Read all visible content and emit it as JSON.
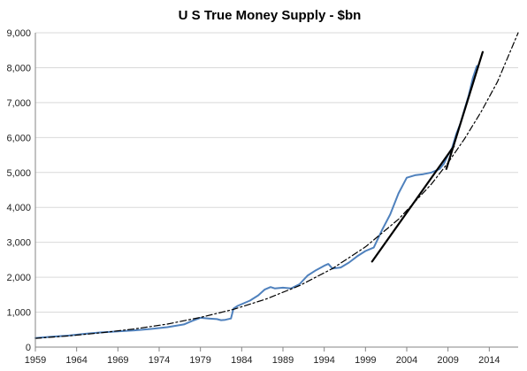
{
  "chart_data": {
    "type": "line",
    "title": "U S True Money Supply - $bn",
    "xlabel": "",
    "ylabel": "",
    "xlim": [
      1959,
      2017.5
    ],
    "ylim": [
      0,
      9000
    ],
    "grid": true,
    "legend": "none",
    "x_ticks": [
      "1959",
      "1964",
      "1969",
      "1974",
      "1979",
      "1984",
      "1989",
      "1994",
      "1999",
      "2004",
      "2009",
      "2014"
    ],
    "y_ticks": [
      "0",
      "1,000",
      "2,000",
      "3,000",
      "4,000",
      "5,000",
      "6,000",
      "7,000",
      "8,000",
      "9,000"
    ],
    "colors": {
      "actual": "#4f81bd",
      "trend": "#000000",
      "grid": "#d9d9d9",
      "axis": "#868686"
    },
    "series": [
      {
        "style": "solid-blue",
        "x": [
          1959,
          1961,
          1963,
          1965,
          1967,
          1969,
          1971,
          1973,
          1975,
          1977,
          1978,
          1979,
          1980,
          1981,
          1981.5,
          1982,
          1982.7,
          1983,
          1983.5,
          1984,
          1985,
          1986,
          1986.8,
          1987.5,
          1988,
          1989,
          1990,
          1991,
          1992,
          1993,
          1994,
          1994.5,
          1995,
          1996,
          1997,
          1998,
          1999,
          2000,
          2001,
          2002,
          2003,
          2004,
          2005,
          2006,
          2007,
          2008,
          2008.5,
          2009,
          2009.5,
          2010,
          2010.5,
          2011,
          2011.5,
          2012,
          2012.5
        ],
        "values": [
          260,
          300,
          330,
          380,
          420,
          450,
          480,
          520,
          570,
          650,
          750,
          840,
          820,
          800,
          770,
          780,
          820,
          1100,
          1180,
          1230,
          1330,
          1480,
          1650,
          1720,
          1680,
          1700,
          1680,
          1800,
          2050,
          2200,
          2330,
          2380,
          2250,
          2280,
          2420,
          2600,
          2750,
          2850,
          3350,
          3800,
          4400,
          4850,
          4920,
          4950,
          5000,
          5100,
          5250,
          5500,
          5700,
          6100,
          6400,
          6800,
          7200,
          7700,
          8050
        ]
      },
      {
        "style": "dash-dot-trend",
        "x": [
          1959,
          1963,
          1967,
          1971,
          1975,
          1979,
          1983,
          1987,
          1991,
          1995,
          1999,
          2003,
          2007,
          2009,
          2011,
          2013,
          2015,
          2017.5
        ],
        "values": [
          250,
          320,
          410,
          520,
          660,
          850,
          1080,
          1380,
          1760,
          2250,
          2870,
          3660,
          4670,
          5280,
          5960,
          6730,
          7600,
          9000
        ]
      },
      {
        "style": "solid-black-trend",
        "x": [
          1999.8,
          2009.7
        ],
        "values": [
          2450,
          5750
        ]
      },
      {
        "style": "solid-black-trend",
        "x": [
          2008.8,
          2013.2
        ],
        "values": [
          5100,
          8450
        ]
      }
    ]
  }
}
